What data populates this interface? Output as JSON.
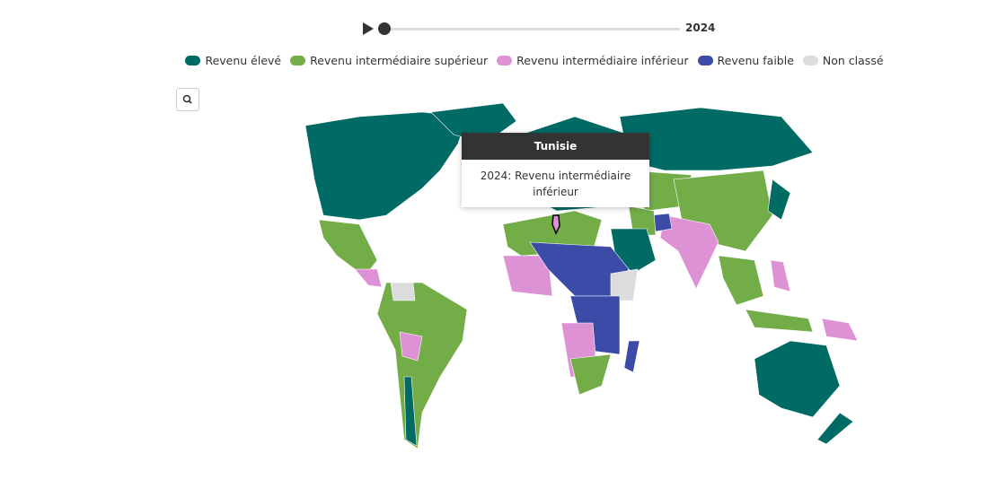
{
  "slider": {
    "year": "2024"
  },
  "legend": [
    {
      "label": "Revenu élevé",
      "color": "#006a65"
    },
    {
      "label": "Revenu intermédiaire supérieur",
      "color": "#72ad48"
    },
    {
      "label": "Revenu intermédiaire inférieur",
      "color": "#dd92d6"
    },
    {
      "label": "Revenu faible",
      "color": "#3c4aa8"
    },
    {
      "label": "Non classé",
      "color": "#dcdcdc"
    }
  ],
  "tooltip": {
    "title": "Tunisie",
    "text": "2024: Revenu intermédiaire inférieur"
  }
}
